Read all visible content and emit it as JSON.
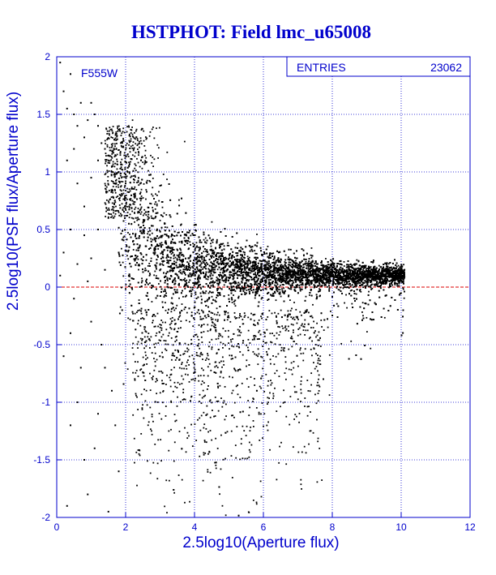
{
  "chart_data": {
    "type": "scatter",
    "title": "HSTPHOT: Field lmc_u65008",
    "xlabel": "2.5log10(Aperture flux)",
    "ylabel": "2.5log10(PSF flux/Aperture flux)",
    "xlim": [
      0,
      12
    ],
    "ylim": [
      -2,
      2
    ],
    "x_ticks": [
      "0",
      "2",
      "4",
      "6",
      "8",
      "10",
      "12"
    ],
    "y_ticks": [
      "-2",
      "-1.5",
      "-1",
      "-0.5",
      "0",
      "0.5",
      "1",
      "1.5",
      "2"
    ],
    "grid": true,
    "reference_line": {
      "y": 0,
      "color": "#dd0000",
      "style": "dashed"
    },
    "annotation": "F555W",
    "stats_box": {
      "label": "ENTRIES",
      "value": "23062"
    },
    "series": [
      {
        "color": "#000000",
        "points": [
          [
            0.1,
            1.95
          ],
          [
            0.2,
            1.7
          ],
          [
            0.3,
            1.55
          ],
          [
            0.4,
            1.85
          ],
          [
            0.5,
            1.5
          ],
          [
            0.6,
            1.4
          ],
          [
            0.7,
            1.6
          ],
          [
            0.8,
            1.3
          ],
          [
            0.9,
            1.45
          ],
          [
            1.0,
            1.6
          ],
          [
            1.1,
            1.5
          ],
          [
            1.2,
            1.4
          ],
          [
            1.3,
            1.25
          ],
          [
            1.4,
            1.2
          ],
          [
            0.5,
            1.2
          ],
          [
            0.3,
            1.1
          ],
          [
            0.6,
            0.9
          ],
          [
            0.8,
            0.7
          ],
          [
            1.0,
            0.95
          ],
          [
            1.2,
            1.1
          ],
          [
            1.5,
            1.1
          ],
          [
            1.6,
            1.0
          ],
          [
            1.7,
            0.9
          ],
          [
            1.8,
            1.0
          ],
          [
            1.9,
            0.8
          ],
          [
            2.0,
            0.9
          ],
          [
            2.1,
            0.7
          ],
          [
            2.2,
            0.75
          ],
          [
            2.3,
            0.6
          ],
          [
            2.4,
            0.65
          ],
          [
            0.4,
            0.5
          ],
          [
            0.8,
            0.45
          ],
          [
            1.2,
            0.5
          ],
          [
            1.5,
            0.6
          ],
          [
            0.2,
            0.3
          ],
          [
            0.6,
            0.2
          ],
          [
            1.0,
            0.25
          ],
          [
            1.4,
            0.15
          ],
          [
            1.8,
            0.3
          ],
          [
            0.5,
            -0.1
          ],
          [
            1.0,
            -0.3
          ],
          [
            1.3,
            -0.5
          ],
          [
            0.7,
            -0.7
          ],
          [
            1.6,
            -0.9
          ],
          [
            0.4,
            -1.2
          ],
          [
            1.1,
            -1.4
          ],
          [
            1.8,
            -1.6
          ],
          [
            0.9,
            -1.8
          ],
          [
            0.3,
            -1.9
          ],
          [
            1.5,
            -1.95
          ],
          [
            0.2,
            -0.6
          ],
          [
            0.6,
            -1.0
          ],
          [
            1.9,
            -0.2
          ],
          [
            1.2,
            -1.1
          ],
          [
            0.8,
            -1.5
          ],
          [
            1.7,
            -1.2
          ],
          [
            0.1,
            0.1
          ],
          [
            0.4,
            -0.4
          ],
          [
            1.4,
            -0.7
          ],
          [
            0.9,
            0.05
          ]
        ]
      }
    ]
  }
}
